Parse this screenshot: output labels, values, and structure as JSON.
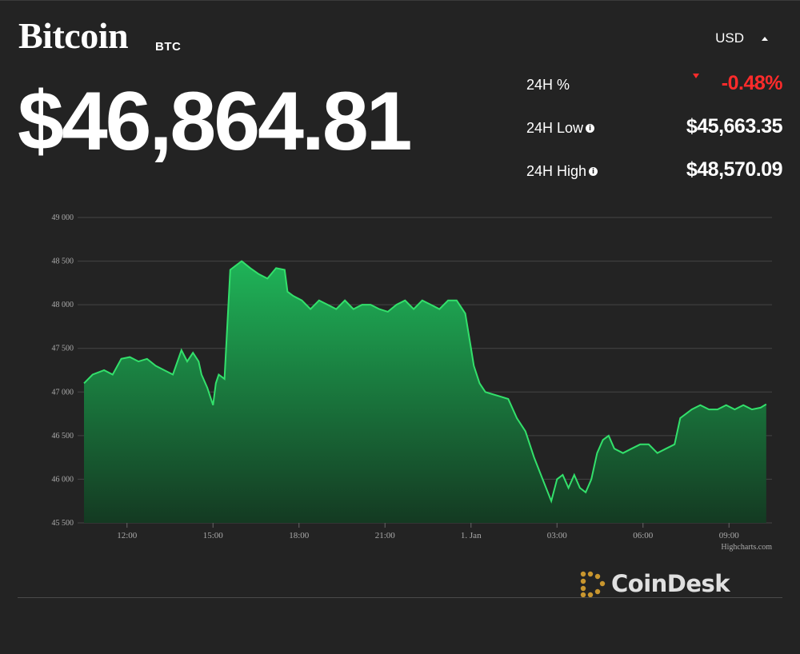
{
  "header": {
    "coin_name": "Bitcoin",
    "coin_symbol": "BTC",
    "price": "$46,864.81",
    "currency": "USD"
  },
  "stats": {
    "change_label": "24H %",
    "change_value": "-0.48%",
    "low_label": "24H Low",
    "low_value": "$45,663.35",
    "high_label": "24H High",
    "high_value": "$48,570.09"
  },
  "credit": "Highcharts.com",
  "brand": "CoinDesk",
  "colors": {
    "line": "#33e06b",
    "area_top": "#1fb458",
    "area_bottom": "#143a22",
    "negative": "#ff2b2b",
    "brand_accent": "#c9962e"
  },
  "chart_data": {
    "type": "area",
    "xlabel": "",
    "ylabel": "",
    "ylim": [
      45500,
      49000
    ],
    "yticks": [
      45500,
      46000,
      46500,
      47000,
      47500,
      48000,
      48500,
      49000
    ],
    "ytick_labels": [
      "45 500",
      "46 000",
      "46 500",
      "47 000",
      "47 500",
      "48 000",
      "48 500",
      "49 000"
    ],
    "xlim": [
      10.5,
      34.5
    ],
    "xticks": [
      12,
      15,
      18,
      21,
      24,
      27,
      30,
      33
    ],
    "xtick_labels": [
      "12:00",
      "15:00",
      "18:00",
      "21:00",
      "1. Jan",
      "03:00",
      "06:00",
      "09:00"
    ],
    "grid": true,
    "legend": "none",
    "series": [
      {
        "x": [
          10.5,
          10.8,
          11.2,
          11.5,
          11.8,
          12.1,
          12.4,
          12.7,
          13.0,
          13.3,
          13.6,
          13.9,
          14.1,
          14.3,
          14.5,
          14.6,
          14.8,
          15.0,
          15.1,
          15.2,
          15.4,
          15.6,
          15.8,
          16.0,
          16.3,
          16.6,
          16.9,
          17.2,
          17.5,
          17.6,
          17.8,
          18.1,
          18.4,
          18.7,
          19.0,
          19.3,
          19.6,
          19.9,
          20.2,
          20.5,
          20.8,
          21.1,
          21.4,
          21.7,
          22.0,
          22.3,
          22.6,
          22.9,
          23.2,
          23.5,
          23.8,
          24.0,
          24.1,
          24.3,
          24.5,
          24.7,
          25.0,
          25.3,
          25.6,
          25.9,
          26.2,
          26.5,
          26.8,
          27.0,
          27.2,
          27.4,
          27.6,
          27.8,
          28.0,
          28.2,
          28.4,
          28.6,
          28.8,
          29.0,
          29.3,
          29.6,
          29.9,
          30.2,
          30.5,
          30.8,
          31.1,
          31.3,
          31.5,
          31.7,
          32.0,
          32.3,
          32.6,
          32.9,
          33.2,
          33.5,
          33.8,
          34.1,
          34.3
        ],
        "y": [
          47100,
          47200,
          47250,
          47200,
          47380,
          47400,
          47350,
          47380,
          47300,
          47250,
          47200,
          47480,
          47350,
          47450,
          47350,
          47200,
          47050,
          46850,
          47100,
          47200,
          47150,
          48400,
          48450,
          48500,
          48420,
          48350,
          48300,
          48420,
          48400,
          48150,
          48100,
          48050,
          47950,
          48050,
          48000,
          47950,
          48050,
          47950,
          48000,
          48000,
          47950,
          47920,
          48000,
          48050,
          47950,
          48050,
          48000,
          47950,
          48050,
          48050,
          47900,
          47500,
          47300,
          47100,
          47000,
          46980,
          46950,
          46920,
          46700,
          46550,
          46250,
          46000,
          45750,
          46000,
          46050,
          45900,
          46050,
          45900,
          45850,
          46000,
          46300,
          46450,
          46500,
          46350,
          46300,
          46350,
          46400,
          46400,
          46300,
          46350,
          46400,
          46700,
          46750,
          46800,
          46850,
          46800,
          46800,
          46850,
          46800,
          46850,
          46800,
          46820,
          46860
        ]
      }
    ]
  }
}
